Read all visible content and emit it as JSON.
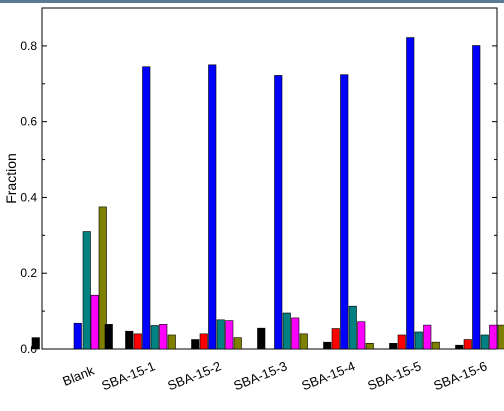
{
  "chart_data": {
    "type": "bar",
    "ylabel": "Fraction",
    "xlabel": "",
    "ylim": [
      0,
      0.9
    ],
    "yticks": [
      "0.0",
      "0.2",
      "0.4",
      "0.6",
      "0.8"
    ],
    "categories": [
      "Blank",
      "SBA-15-1",
      "SBA-15-2",
      "SBA-15-3",
      "SBA-15-4",
      "SBA-15-5",
      "SBA-15-6"
    ],
    "series": [
      {
        "color": "#000000",
        "values": [
          0.03,
          0.0,
          0.0,
          0.0,
          0.0,
          0.0,
          0.0
        ]
      },
      {
        "color": "#ff0000",
        "values": [
          0.0,
          0.0,
          0.0,
          0.0,
          0.0,
          0.0,
          0.0
        ]
      },
      {
        "color": "#0000ff",
        "values": [
          0.068,
          0.745,
          0.75,
          0.722,
          0.724,
          0.822,
          0.801
        ]
      },
      {
        "color": "#008080",
        "values": [
          0.31,
          0.062,
          0.077,
          0.095,
          0.113,
          0.045,
          0.037
        ]
      },
      {
        "color": "#ff00ff",
        "values": [
          0.142,
          0.065,
          0.075,
          0.082,
          0.072,
          0.063,
          0.063
        ]
      },
      {
        "color": "#808000",
        "values": [
          0.375,
          0.037,
          0.03,
          0.04,
          0.015,
          0.018,
          0.063
        ]
      },
      {
        "color": "#000000",
        "values": [
          0.065,
          0.0,
          0.0,
          0.0,
          0.0,
          0.0,
          0.0
        ]
      }
    ],
    "extra_series": [
      {
        "color": "#000000",
        "values": [
          0.0,
          0.047,
          0.025,
          0.055,
          0.018,
          0.015,
          0.01
        ]
      },
      {
        "color": "#ff0000",
        "values": [
          0.0,
          0.04,
          0.04,
          0.0,
          0.054,
          0.037,
          0.025
        ]
      }
    ],
    "grid": false,
    "legend": "none"
  }
}
